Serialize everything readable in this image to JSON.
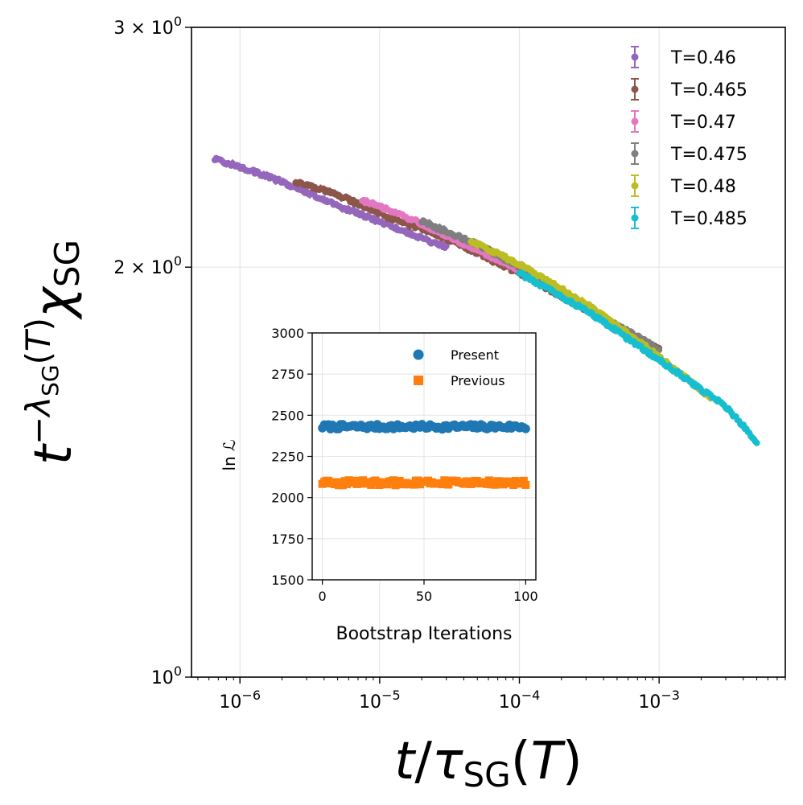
{
  "chart_data": [
    {
      "type": "scatter",
      "xscale": "log",
      "yscale": "log",
      "xlabel": "t/τ_SG(T)",
      "ylabel": "t^{-λ_SG(T)} χ_SG",
      "xlim": [
        4.5e-07,
        0.008
      ],
      "ylim": [
        1.0,
        3.0
      ],
      "grid": true,
      "legend_position": "top-right",
      "x_ticks": [
        1e-06,
        1e-05,
        0.0001,
        0.001
      ],
      "x_tick_labels": [
        {
          "base": "10",
          "exp": "−6"
        },
        {
          "base": "10",
          "exp": "−5"
        },
        {
          "base": "10",
          "exp": "−4"
        },
        {
          "base": "10",
          "exp": "−3"
        }
      ],
      "y_ticks": [
        1,
        2,
        3
      ],
      "y_tick_labels": [
        {
          "mant": "",
          "base": "10",
          "exp": "0"
        },
        {
          "mant": "2 × ",
          "base": "10",
          "exp": "0"
        },
        {
          "mant": "3 × ",
          "base": "10",
          "exp": "0"
        }
      ],
      "series": [
        {
          "name": "T=0.46",
          "color": "#9467bd",
          "x_range": [
            6.6e-07,
            3e-05
          ],
          "points": [
            [
              6.6e-07,
              2.4
            ],
            [
              1e-06,
              2.37
            ],
            [
              2e-06,
              2.31
            ],
            [
              5e-06,
              2.22
            ],
            [
              1e-05,
              2.16
            ],
            [
              2e-05,
              2.1
            ],
            [
              3e-05,
              2.07
            ]
          ]
        },
        {
          "name": "T=0.465",
          "color": "#8c564b",
          "x_range": [
            2.5e-06,
            0.001
          ],
          "points": [
            [
              2.5e-06,
              2.31
            ],
            [
              5e-06,
              2.26
            ],
            [
              1e-05,
              2.19
            ],
            [
              3e-05,
              2.1
            ],
            [
              0.0001,
              1.98
            ],
            [
              0.0003,
              1.86
            ],
            [
              0.001,
              1.74
            ]
          ]
        },
        {
          "name": "T=0.47",
          "color": "#e377c2",
          "x_range": [
            7.5e-06,
            0.00012
          ],
          "points": [
            [
              7.5e-06,
              2.24
            ],
            [
              1.5e-05,
              2.18
            ],
            [
              3e-05,
              2.11
            ],
            [
              6e-05,
              2.04
            ],
            [
              0.00012,
              1.97
            ]
          ]
        },
        {
          "name": "T=0.475",
          "color": "#7f7f7f",
          "x_range": [
            2e-05,
            0.001
          ],
          "points": [
            [
              2e-05,
              2.16
            ],
            [
              5e-05,
              2.08
            ],
            [
              0.0001,
              2.0
            ],
            [
              0.0003,
              1.87
            ],
            [
              0.001,
              1.74
            ]
          ]
        },
        {
          "name": "T=0.48",
          "color": "#bcbd22",
          "x_range": [
            4.5e-05,
            0.0024
          ],
          "points": [
            [
              4.5e-05,
              2.09
            ],
            [
              0.0001,
              2.01
            ],
            [
              0.0003,
              1.88
            ],
            [
              0.001,
              1.72
            ],
            [
              0.0024,
              1.6
            ]
          ]
        },
        {
          "name": "T=0.485",
          "color": "#17becf",
          "x_range": [
            0.0001,
            0.005
          ],
          "points": [
            [
              0.0001,
              1.98
            ],
            [
              0.0003,
              1.86
            ],
            [
              0.001,
              1.71
            ],
            [
              0.003,
              1.58
            ],
            [
              0.005,
              1.49
            ]
          ]
        }
      ]
    },
    {
      "type": "scatter",
      "title": "",
      "xlabel": "Bootstrap Iterations",
      "ylabel": "ln ℒ",
      "xlim": [
        -5,
        105
      ],
      "ylim": [
        1500,
        3000
      ],
      "grid": true,
      "legend_position": "top-right",
      "x_ticks": [
        0,
        50,
        100
      ],
      "y_ticks": [
        1500,
        1750,
        2000,
        2250,
        2500,
        2750,
        3000
      ],
      "n_points": 101,
      "series": [
        {
          "name": "Present",
          "color": "#1f77b4",
          "marker": "circle",
          "mean": 2430,
          "spread": 15
        },
        {
          "name": "Previous",
          "color": "#ff7f0e",
          "marker": "square",
          "mean": 2090,
          "spread": 15
        }
      ]
    }
  ]
}
